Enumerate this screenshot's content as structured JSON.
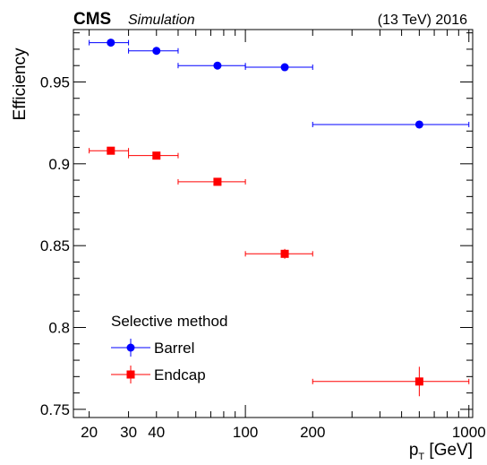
{
  "header": {
    "cms": "CMS",
    "simulation": "Simulation",
    "energy": "(13 TeV) 2016"
  },
  "chart_data": {
    "type": "scatter",
    "xscale": "log",
    "xlim": [
      17,
      1040
    ],
    "ylim": [
      0.745,
      0.982
    ],
    "xlabel_main": "p",
    "xlabel_sub": "T",
    "xlabel_unit": " [GeV]",
    "ylabel": "Efficiency",
    "xticks": [
      20,
      30,
      40,
      100,
      200,
      1000
    ],
    "xtick_labels": [
      "20",
      "30",
      "40",
      "100",
      "200",
      "1000"
    ],
    "yticks": [
      0.75,
      0.8,
      0.85,
      0.9,
      0.95
    ],
    "ytick_labels": [
      "0.75",
      "0.8",
      "0.85",
      "0.9",
      "0.95"
    ],
    "grid": false,
    "legend": {
      "title": "Selective method",
      "placement": "bottom-left"
    },
    "series": [
      {
        "name": "Barrel",
        "color": "#0000ff",
        "marker": "circle",
        "points": [
          {
            "x": 25,
            "xlo": 20,
            "xhi": 30,
            "y": 0.974,
            "yerr": 0.001
          },
          {
            "x": 40,
            "xlo": 30,
            "xhi": 50,
            "y": 0.969,
            "yerr": 0.001
          },
          {
            "x": 75,
            "xlo": 50,
            "xhi": 100,
            "y": 0.96,
            "yerr": 0.001
          },
          {
            "x": 150,
            "xlo": 100,
            "xhi": 200,
            "y": 0.959,
            "yerr": 0.001
          },
          {
            "x": 600,
            "xlo": 200,
            "xhi": 1000,
            "y": 0.924,
            "yerr": 0.002
          }
        ]
      },
      {
        "name": "Endcap",
        "color": "#ff0000",
        "marker": "square",
        "points": [
          {
            "x": 25,
            "xlo": 20,
            "xhi": 30,
            "y": 0.908,
            "yerr": 0.002
          },
          {
            "x": 40,
            "xlo": 30,
            "xhi": 50,
            "y": 0.905,
            "yerr": 0.002
          },
          {
            "x": 75,
            "xlo": 50,
            "xhi": 100,
            "y": 0.889,
            "yerr": 0.002
          },
          {
            "x": 150,
            "xlo": 100,
            "xhi": 200,
            "y": 0.845,
            "yerr": 0.003
          },
          {
            "x": 600,
            "xlo": 200,
            "xhi": 1000,
            "y": 0.767,
            "yerr": 0.009
          }
        ]
      }
    ]
  }
}
